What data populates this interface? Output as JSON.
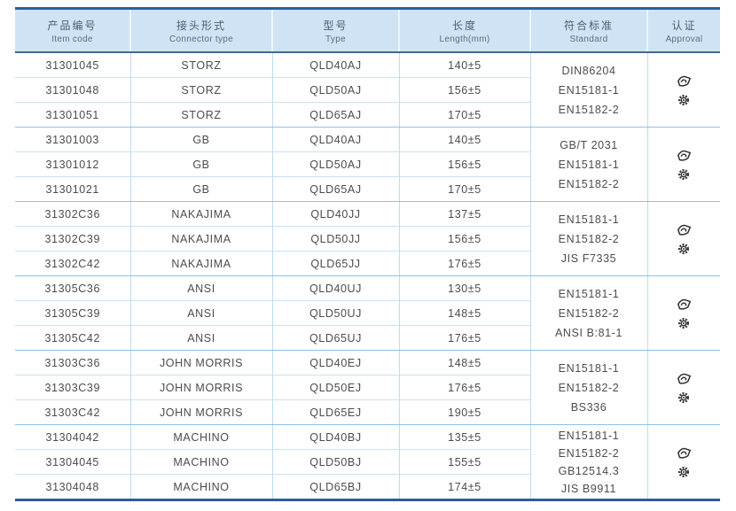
{
  "page": {
    "background": "#ffffff"
  },
  "colors": {
    "border_dark": "#2e5c9e",
    "header_underline": "#41689b",
    "header_bg": "#cfe3f5",
    "row_line_light": "#c6e2f6",
    "group_line": "#8fc0e8",
    "text": "#4c4c4c",
    "header_text": "#4b6073",
    "icon_ink": "#2f2f2f"
  },
  "table": {
    "columns": [
      {
        "zh": "产品编号",
        "en": "Item code"
      },
      {
        "zh": "接头形式",
        "en": "Connector type"
      },
      {
        "zh": "型号",
        "en": "Type"
      },
      {
        "zh": "长度",
        "en": "Length(mm)"
      },
      {
        "zh": "符合标准",
        "en": "Standard"
      },
      {
        "zh": "认证",
        "en": "Approval"
      }
    ],
    "groups": [
      {
        "rows": [
          {
            "code": "31301045",
            "connector": "STORZ",
            "type": "QLD40AJ",
            "length": "140±5"
          },
          {
            "code": "31301048",
            "connector": "STORZ",
            "type": "QLD50AJ",
            "length": "156±5"
          },
          {
            "code": "31301051",
            "connector": "STORZ",
            "type": "QLD65AJ",
            "length": "170±5"
          }
        ],
        "standards": [
          "DIN86204",
          "EN15181-1",
          "EN15182-2"
        ],
        "approval_icons": [
          "certificate-icon",
          "wheelmark-icon"
        ]
      },
      {
        "rows": [
          {
            "code": "31301003",
            "connector": "GB",
            "type": "QLD40AJ",
            "length": "140±5"
          },
          {
            "code": "31301012",
            "connector": "GB",
            "type": "QLD50AJ",
            "length": "156±5"
          },
          {
            "code": "31301021",
            "connector": "GB",
            "type": "QLD65AJ",
            "length": "170±5"
          }
        ],
        "standards": [
          "GB/T 2031",
          "EN15181-1",
          "EN15182-2"
        ],
        "approval_icons": [
          "certificate-icon",
          "wheelmark-icon"
        ]
      },
      {
        "rows": [
          {
            "code": "31302C36",
            "connector": "NAKAJIMA",
            "type": "QLD40JJ",
            "length": "137±5"
          },
          {
            "code": "31302C39",
            "connector": "NAKAJIMA",
            "type": "QLD50JJ",
            "length": "156±5"
          },
          {
            "code": "31302C42",
            "connector": "NAKAJIMA",
            "type": "QLD65JJ",
            "length": "176±5"
          }
        ],
        "standards": [
          "EN15181-1",
          "EN15182-2",
          "JIS F7335"
        ],
        "approval_icons": [
          "certificate-icon",
          "wheelmark-icon"
        ]
      },
      {
        "rows": [
          {
            "code": "31305C36",
            "connector": "ANSI",
            "type": "QLD40UJ",
            "length": "130±5"
          },
          {
            "code": "31305C39",
            "connector": "ANSI",
            "type": "QLD50UJ",
            "length": "148±5"
          },
          {
            "code": "31305C42",
            "connector": "ANSI",
            "type": "QLD65UJ",
            "length": "176±5"
          }
        ],
        "standards": [
          "EN15181-1",
          "EN15182-2",
          "ANSI B:81-1"
        ],
        "approval_icons": [
          "certificate-icon",
          "wheelmark-icon"
        ]
      },
      {
        "rows": [
          {
            "code": "31303C36",
            "connector": "JOHN MORRIS",
            "type": "QLD40EJ",
            "length": "148±5"
          },
          {
            "code": "31303C39",
            "connector": "JOHN MORRIS",
            "type": "QLD50EJ",
            "length": "176±5"
          },
          {
            "code": "31303C42",
            "connector": "JOHN MORRIS",
            "type": "QLD65EJ",
            "length": "190±5"
          }
        ],
        "standards": [
          "EN15181-1",
          "EN15182-2",
          "BS336"
        ],
        "approval_icons": [
          "certificate-icon",
          "wheelmark-icon"
        ]
      },
      {
        "rows": [
          {
            "code": "31304042",
            "connector": "MACHINO",
            "type": "QLD40BJ",
            "length": "135±5"
          },
          {
            "code": "31304045",
            "connector": "MACHINO",
            "type": "QLD50BJ",
            "length": "155±5"
          },
          {
            "code": "31304048",
            "connector": "MACHINO",
            "type": "QLD65BJ",
            "length": "174±5"
          }
        ],
        "standards": [
          "EN15181-1",
          "EN15182-2",
          "GB12514.3",
          "JIS B9911"
        ],
        "approval_icons": [
          "certificate-icon",
          "wheelmark-icon"
        ]
      }
    ]
  }
}
